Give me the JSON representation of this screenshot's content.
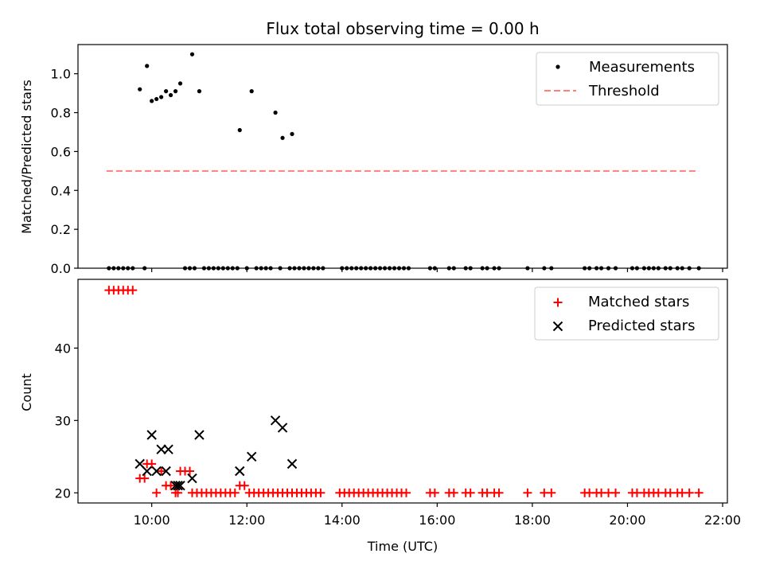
{
  "colors": {
    "measurement": "#000000",
    "threshold": "#ff7f7f",
    "matched": "#ff0000",
    "predicted": "#000000"
  },
  "chart_data": [
    {
      "type": "scatter",
      "title": "Flux total observing time = 0.00 h",
      "xlabel": "",
      "ylabel": "Matched/Predicted stars",
      "xlim": [
        8.45,
        22.1
      ],
      "ylim": [
        0,
        1.15
      ],
      "yticks": [
        0,
        0.2,
        0.4,
        0.6,
        0.8,
        1.0
      ],
      "ytick_labels": [
        "0.0",
        "0.2",
        "0.4",
        "0.6",
        "0.8",
        "1.0"
      ],
      "xticks": [
        10,
        12,
        14,
        16,
        18,
        20,
        22
      ],
      "legend_position": "top-right",
      "series": [
        {
          "name": "Measurements",
          "marker": "dot",
          "x": [
            9.75,
            9.9,
            10.0,
            10.1,
            10.2,
            10.3,
            10.4,
            10.5,
            10.6,
            10.85,
            11.0,
            11.85,
            12.1,
            12.6,
            12.75,
            12.95,
            9.1,
            9.2,
            9.3,
            9.4,
            9.5,
            9.6,
            9.85,
            10.7,
            10.8,
            10.9,
            11.1,
            11.2,
            11.3,
            11.4,
            11.5,
            11.6,
            11.7,
            11.8,
            12.0,
            12.2,
            12.3,
            12.4,
            12.5,
            12.7,
            12.9,
            13.0,
            13.1,
            13.2,
            13.3,
            13.4,
            13.5,
            13.6,
            14.0,
            14.1,
            14.2,
            14.3,
            14.4,
            14.5,
            14.6,
            14.7,
            14.8,
            14.9,
            15.0,
            15.1,
            15.2,
            15.3,
            15.4,
            15.85,
            15.95,
            16.25,
            16.35,
            16.6,
            16.7,
            16.95,
            17.05,
            17.2,
            17.3,
            17.9,
            18.25,
            18.4,
            19.1,
            19.2,
            19.35,
            19.45,
            19.6,
            19.75,
            20.1,
            20.2,
            20.35,
            20.45,
            20.55,
            20.65,
            20.8,
            20.9,
            21.05,
            21.15,
            21.3,
            21.5
          ],
          "y": [
            0.92,
            1.04,
            0.86,
            0.87,
            0.88,
            0.91,
            0.89,
            0.91,
            0.95,
            1.1,
            0.91,
            0.71,
            0.91,
            0.8,
            0.67,
            0.69,
            0,
            0,
            0,
            0,
            0,
            0,
            0,
            0,
            0,
            0,
            0,
            0,
            0,
            0,
            0,
            0,
            0,
            0,
            0,
            0,
            0,
            0,
            0,
            0,
            0,
            0,
            0,
            0,
            0,
            0,
            0,
            0,
            0,
            0,
            0,
            0,
            0,
            0,
            0,
            0,
            0,
            0,
            0,
            0,
            0,
            0,
            0,
            0,
            0,
            0,
            0,
            0,
            0,
            0,
            0,
            0,
            0,
            0,
            0,
            0,
            0,
            0,
            0,
            0,
            0,
            0,
            0,
            0,
            0,
            0,
            0,
            0,
            0,
            0,
            0,
            0,
            0,
            0
          ]
        },
        {
          "name": "Threshold",
          "type": "line",
          "style": "dashed",
          "x": [
            9.05,
            21.5
          ],
          "y": [
            0.5,
            0.5
          ]
        }
      ]
    },
    {
      "type": "scatter",
      "title": "",
      "xlabel": "Time (UTC)",
      "ylabel": "Count",
      "xlim": [
        8.45,
        22.1
      ],
      "ylim": [
        18.6,
        49.5
      ],
      "yticks": [
        20,
        30,
        40
      ],
      "ytick_labels": [
        "20",
        "30",
        "40"
      ],
      "xticks": [
        10,
        12,
        14,
        16,
        18,
        20,
        22
      ],
      "xtick_labels": [
        "10:00",
        "12:00",
        "14:00",
        "16:00",
        "18:00",
        "20:00",
        "22:00"
      ],
      "legend_position": "top-right",
      "series": [
        {
          "name": "Matched stars",
          "marker": "plus",
          "x": [
            9.1,
            9.2,
            9.3,
            9.4,
            9.5,
            9.6,
            9.75,
            9.85,
            9.9,
            10.0,
            10.1,
            10.2,
            10.3,
            10.4,
            10.5,
            10.55,
            10.6,
            10.7,
            10.8,
            10.85,
            10.95,
            11.05,
            11.15,
            11.25,
            11.35,
            11.45,
            11.55,
            11.65,
            11.75,
            11.85,
            11.95,
            12.05,
            12.15,
            12.25,
            12.35,
            12.45,
            12.55,
            12.65,
            12.75,
            12.85,
            12.95,
            13.05,
            13.15,
            13.25,
            13.35,
            13.45,
            13.55,
            13.95,
            14.05,
            14.15,
            14.25,
            14.35,
            14.45,
            14.55,
            14.65,
            14.75,
            14.85,
            14.95,
            15.05,
            15.15,
            15.25,
            15.35,
            15.85,
            15.95,
            16.25,
            16.35,
            16.6,
            16.7,
            16.95,
            17.05,
            17.2,
            17.3,
            17.9,
            18.25,
            18.4,
            19.1,
            19.2,
            19.35,
            19.45,
            19.6,
            19.75,
            20.1,
            20.2,
            20.35,
            20.45,
            20.55,
            20.65,
            20.8,
            20.9,
            21.05,
            21.15,
            21.3,
            21.5
          ],
          "y": [
            48,
            48,
            48,
            48,
            48,
            48,
            22,
            22,
            24,
            24,
            20,
            23,
            21,
            21,
            20,
            20,
            23,
            23,
            23,
            20,
            20,
            20,
            20,
            20,
            20,
            20,
            20,
            20,
            20,
            21,
            21,
            20,
            20,
            20,
            20,
            20,
            20,
            20,
            20,
            20,
            20,
            20,
            20,
            20,
            20,
            20,
            20,
            20,
            20,
            20,
            20,
            20,
            20,
            20,
            20,
            20,
            20,
            20,
            20,
            20,
            20,
            20,
            20,
            20,
            20,
            20,
            20,
            20,
            20,
            20,
            20,
            20,
            20,
            20,
            20,
            20,
            20,
            20,
            20,
            20,
            20,
            20,
            20,
            20,
            20,
            20,
            20,
            20,
            20,
            20,
            20,
            20,
            20
          ]
        },
        {
          "name": "Predicted stars",
          "marker": "x",
          "x": [
            9.75,
            9.9,
            10.0,
            10.1,
            10.2,
            10.3,
            10.35,
            10.5,
            10.55,
            10.6,
            10.85,
            11.0,
            11.85,
            12.1,
            12.6,
            12.75,
            12.95
          ],
          "y": [
            24,
            23,
            28,
            23,
            26,
            23,
            26,
            21,
            21,
            21,
            22,
            28,
            23,
            25,
            30,
            29,
            24
          ]
        }
      ]
    }
  ]
}
